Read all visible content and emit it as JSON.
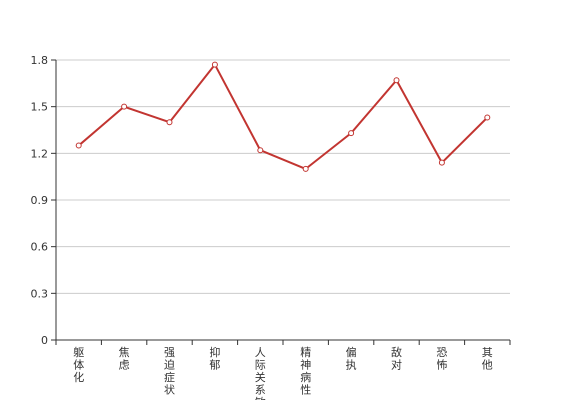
{
  "chart_data": {
    "type": "line",
    "title": "",
    "xlabel": "",
    "ylabel": "",
    "categories": [
      "躯体化",
      "焦虑",
      "强迫症状",
      "抑郁",
      "人际关系敏",
      "精神病性",
      "偏执",
      "敌对",
      "恐怖",
      "其他"
    ],
    "series": [
      {
        "values": [
          1.25,
          1.5,
          1.4,
          1.77,
          1.22,
          1.1,
          1.33,
          1.67,
          1.14,
          1.43
        ]
      }
    ],
    "ylim": [
      0,
      1.8
    ],
    "yticks": [
      "0",
      "0.3",
      "0.6",
      "0.9",
      "1.2",
      "1.5",
      "1.8"
    ],
    "grid": true,
    "legend": "none",
    "colors": {
      "line": "#c23531",
      "grid": "#cccccc",
      "axis": "#333333",
      "text": "#333333"
    }
  }
}
